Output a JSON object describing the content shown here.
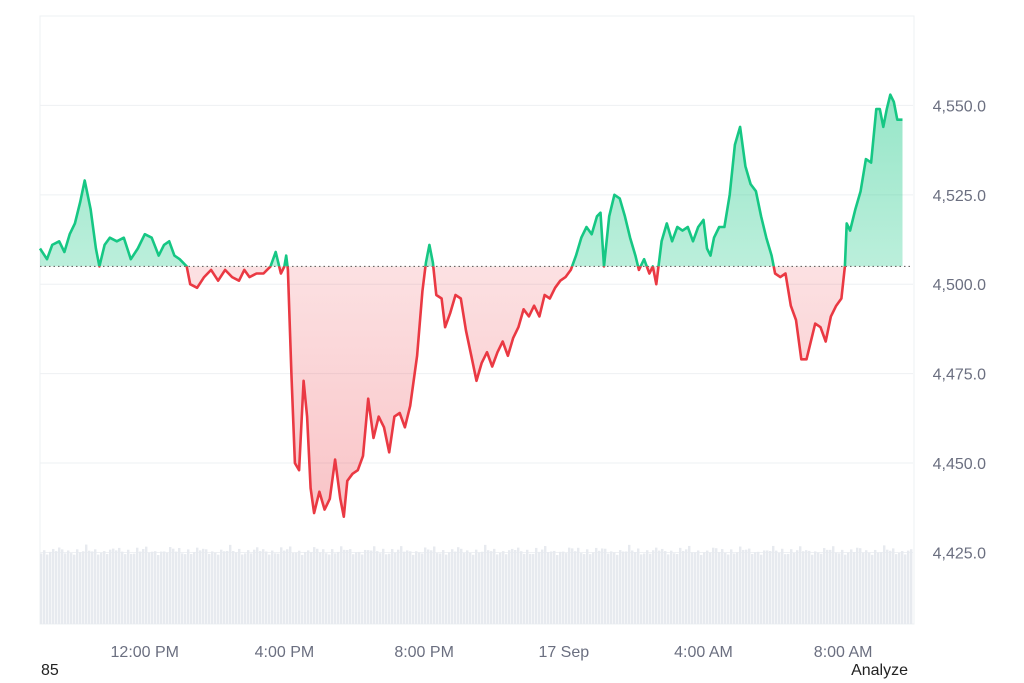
{
  "chart_data": {
    "type": "area",
    "baseline": 4505,
    "ylim": [
      4405,
      4575
    ],
    "y_ticks": [
      4425,
      4450,
      4475,
      4500,
      4525,
      4550
    ],
    "y_tick_labels": [
      "4,425.0",
      "4,450.0",
      "4,475.0",
      "4,500.0",
      "4,525.0",
      "4,550.0"
    ],
    "x_tick_labels": [
      "12:00 PM",
      "4:00 PM",
      "8:00 PM",
      "17 Sep",
      "4:00 AM",
      "8:00 AM"
    ],
    "x_ticks_hours": [
      3,
      7,
      11,
      15,
      19,
      23
    ],
    "xlim_hours": [
      0,
      25
    ],
    "series": [
      {
        "points": [
          [
            0.0,
            4510
          ],
          [
            0.2,
            4507
          ],
          [
            0.35,
            4511
          ],
          [
            0.55,
            4512
          ],
          [
            0.7,
            4509
          ],
          [
            0.85,
            4514
          ],
          [
            1.0,
            4517
          ],
          [
            1.15,
            4523
          ],
          [
            1.28,
            4529
          ],
          [
            1.45,
            4521
          ],
          [
            1.6,
            4510
          ],
          [
            1.7,
            4505
          ],
          [
            1.85,
            4511
          ],
          [
            2.0,
            4513
          ],
          [
            2.2,
            4512
          ],
          [
            2.4,
            4513
          ],
          [
            2.6,
            4507
          ],
          [
            2.8,
            4510
          ],
          [
            3.0,
            4514
          ],
          [
            3.2,
            4513
          ],
          [
            3.4,
            4508
          ],
          [
            3.55,
            4511
          ],
          [
            3.7,
            4512
          ],
          [
            3.85,
            4508
          ],
          [
            4.0,
            4507
          ],
          [
            4.2,
            4505
          ],
          [
            4.3,
            4500
          ],
          [
            4.5,
            4499
          ],
          [
            4.7,
            4502
          ],
          [
            4.9,
            4504
          ],
          [
            5.1,
            4501
          ],
          [
            5.3,
            4504
          ],
          [
            5.5,
            4502
          ],
          [
            5.7,
            4501
          ],
          [
            5.85,
            4504
          ],
          [
            6.0,
            4502
          ],
          [
            6.2,
            4503
          ],
          [
            6.4,
            4503
          ],
          [
            6.6,
            4505
          ],
          [
            6.75,
            4509
          ],
          [
            6.9,
            4503
          ],
          [
            7.0,
            4505
          ],
          [
            7.05,
            4508
          ],
          [
            7.1,
            4504
          ],
          [
            7.2,
            4475
          ],
          [
            7.3,
            4450
          ],
          [
            7.42,
            4448
          ],
          [
            7.55,
            4473
          ],
          [
            7.65,
            4463
          ],
          [
            7.75,
            4443
          ],
          [
            7.85,
            4436
          ],
          [
            8.0,
            4442
          ],
          [
            8.15,
            4437
          ],
          [
            8.3,
            4440
          ],
          [
            8.45,
            4451
          ],
          [
            8.6,
            4440
          ],
          [
            8.7,
            4435
          ],
          [
            8.8,
            4445
          ],
          [
            8.95,
            4447
          ],
          [
            9.1,
            4448
          ],
          [
            9.25,
            4452
          ],
          [
            9.4,
            4468
          ],
          [
            9.55,
            4457
          ],
          [
            9.7,
            4463
          ],
          [
            9.85,
            4460
          ],
          [
            10.0,
            4453
          ],
          [
            10.15,
            4463
          ],
          [
            10.3,
            4464
          ],
          [
            10.45,
            4460
          ],
          [
            10.6,
            4466
          ],
          [
            10.8,
            4480
          ],
          [
            10.95,
            4498
          ],
          [
            11.05,
            4506
          ],
          [
            11.15,
            4511
          ],
          [
            11.25,
            4506
          ],
          [
            11.35,
            4497
          ],
          [
            11.5,
            4496
          ],
          [
            11.6,
            4488
          ],
          [
            11.75,
            4492
          ],
          [
            11.9,
            4497
          ],
          [
            12.05,
            4496
          ],
          [
            12.2,
            4487
          ],
          [
            12.35,
            4480
          ],
          [
            12.5,
            4473
          ],
          [
            12.65,
            4478
          ],
          [
            12.8,
            4481
          ],
          [
            12.95,
            4477
          ],
          [
            13.1,
            4481
          ],
          [
            13.25,
            4484
          ],
          [
            13.4,
            4480
          ],
          [
            13.55,
            4485
          ],
          [
            13.7,
            4488
          ],
          [
            13.85,
            4493
          ],
          [
            14.0,
            4491
          ],
          [
            14.15,
            4494
          ],
          [
            14.3,
            4491
          ],
          [
            14.45,
            4497
          ],
          [
            14.6,
            4496
          ],
          [
            14.75,
            4499
          ],
          [
            14.9,
            4501
          ],
          [
            15.05,
            4502
          ],
          [
            15.2,
            4504
          ],
          [
            15.35,
            4508
          ],
          [
            15.5,
            4513
          ],
          [
            15.65,
            4516
          ],
          [
            15.8,
            4514
          ],
          [
            15.95,
            4519
          ],
          [
            16.05,
            4520
          ],
          [
            16.15,
            4505
          ],
          [
            16.3,
            4519
          ],
          [
            16.45,
            4525
          ],
          [
            16.6,
            4524
          ],
          [
            16.75,
            4519
          ],
          [
            16.9,
            4513
          ],
          [
            17.05,
            4508
          ],
          [
            17.15,
            4504
          ],
          [
            17.3,
            4507
          ],
          [
            17.45,
            4503
          ],
          [
            17.55,
            4505
          ],
          [
            17.65,
            4500
          ],
          [
            17.8,
            4512
          ],
          [
            17.95,
            4517
          ],
          [
            18.1,
            4512
          ],
          [
            18.25,
            4516
          ],
          [
            18.4,
            4515
          ],
          [
            18.55,
            4516
          ],
          [
            18.7,
            4512
          ],
          [
            18.85,
            4516
          ],
          [
            19.0,
            4518
          ],
          [
            19.1,
            4510
          ],
          [
            19.2,
            4508
          ],
          [
            19.3,
            4513
          ],
          [
            19.45,
            4516
          ],
          [
            19.6,
            4516
          ],
          [
            19.75,
            4525
          ],
          [
            19.9,
            4539
          ],
          [
            20.05,
            4544
          ],
          [
            20.2,
            4533
          ],
          [
            20.35,
            4528
          ],
          [
            20.5,
            4526
          ],
          [
            20.65,
            4519
          ],
          [
            20.8,
            4513
          ],
          [
            20.95,
            4508
          ],
          [
            21.05,
            4503
          ],
          [
            21.2,
            4502
          ],
          [
            21.35,
            4503
          ],
          [
            21.5,
            4494
          ],
          [
            21.65,
            4490
          ],
          [
            21.8,
            4479
          ],
          [
            21.95,
            4479
          ],
          [
            22.1,
            4485
          ],
          [
            22.2,
            4489
          ],
          [
            22.35,
            4488
          ],
          [
            22.5,
            4484
          ],
          [
            22.65,
            4491
          ],
          [
            22.8,
            4494
          ],
          [
            22.95,
            4496
          ],
          [
            23.05,
            4505
          ],
          [
            23.1,
            4517
          ],
          [
            23.2,
            4515
          ],
          [
            23.35,
            4521
          ],
          [
            23.5,
            4526
          ],
          [
            23.65,
            4535
          ],
          [
            23.8,
            4534
          ],
          [
            23.95,
            4549
          ],
          [
            24.05,
            4549
          ],
          [
            24.15,
            4544
          ],
          [
            24.25,
            4549
          ],
          [
            24.35,
            4553
          ],
          [
            24.45,
            4551
          ],
          [
            24.55,
            4546
          ],
          [
            24.7,
            4546
          ]
        ]
      }
    ],
    "colors": {
      "up_line": "#16c784",
      "down_line": "#ea3943",
      "up_fill": "#16c784",
      "down_fill": "#ea3943",
      "grid": "#eef0f3",
      "volume": "#e7eaef"
    },
    "grid": true
  },
  "footer": {
    "left_text": "85",
    "right_text": "Analyze"
  }
}
